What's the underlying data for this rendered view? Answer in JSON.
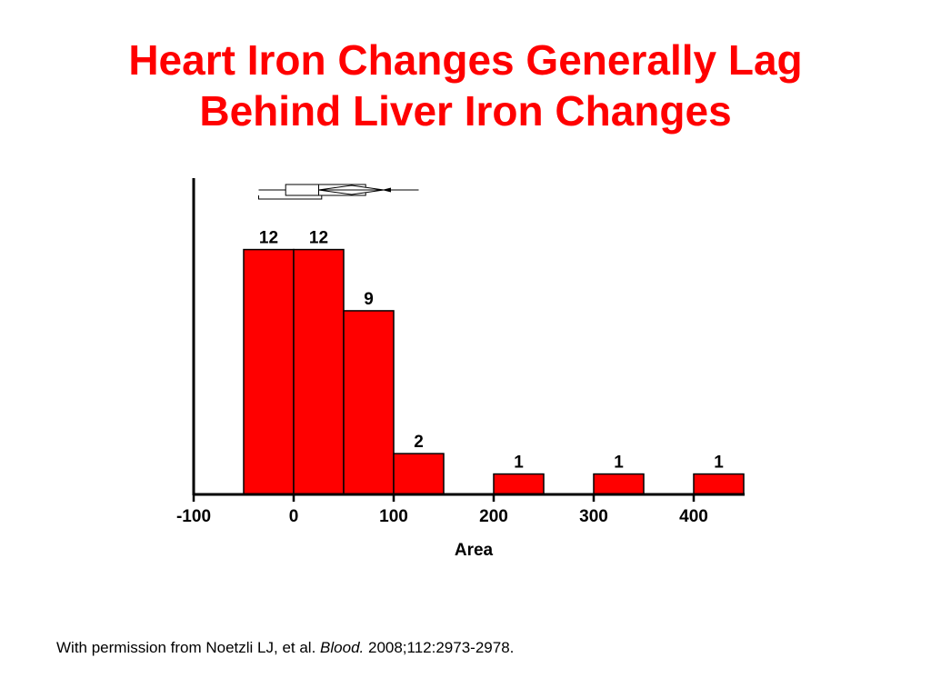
{
  "slide": {
    "title_line1": "Heart Iron Changes Generally Lag",
    "title_line2": "Behind Liver Iron Changes",
    "title_color": "#ff0000"
  },
  "citation": {
    "prefix": "With permission from Noetzli LJ, et al.",
    "journal": "Blood.",
    "suffix": "2008;112:2973-2978."
  },
  "chart_data": {
    "type": "bar",
    "subtype": "histogram",
    "title": "",
    "xlabel": "Area",
    "ylabel": "",
    "bar_color": "#ff0000",
    "xlim": [
      -100,
      450
    ],
    "ylim": [
      0,
      15.5
    ],
    "x_ticks": [
      -100,
      0,
      100,
      200,
      300,
      400
    ],
    "x_tick_labels": [
      "-100",
      "0",
      "100",
      "200",
      "300",
      "400"
    ],
    "bins": [
      {
        "start": -50,
        "end": 0,
        "count": 12,
        "label": "12"
      },
      {
        "start": 0,
        "end": 50,
        "count": 12,
        "label": "12"
      },
      {
        "start": 50,
        "end": 100,
        "count": 9,
        "label": "9"
      },
      {
        "start": 100,
        "end": 150,
        "count": 2,
        "label": "2"
      },
      {
        "start": 150,
        "end": 200,
        "count": 0,
        "label": ""
      },
      {
        "start": 200,
        "end": 250,
        "count": 1,
        "label": "1"
      },
      {
        "start": 250,
        "end": 300,
        "count": 0,
        "label": ""
      },
      {
        "start": 300,
        "end": 350,
        "count": 1,
        "label": "1"
      },
      {
        "start": 350,
        "end": 400,
        "count": 0,
        "label": ""
      },
      {
        "start": 400,
        "end": 450,
        "count": 1,
        "label": "1"
      }
    ],
    "box_plot": {
      "whisker_low": -35,
      "q1": -8,
      "median": 25,
      "q3": 72,
      "whisker_high": 125,
      "mean": 58,
      "mean_ci_low": 25,
      "mean_ci_high": 90,
      "shortest_half_low": -35,
      "shortest_half_high": 28
    }
  }
}
